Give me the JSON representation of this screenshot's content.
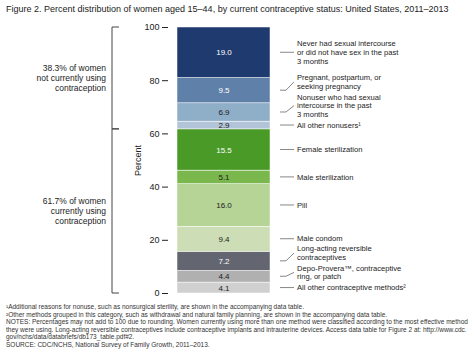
{
  "chart_data": {
    "type": "bar",
    "stacked": true,
    "data_labels": true,
    "title": "Figure 2. Percent distribution of women aged 15–44, by current contraceptive status: United States, 2011–2013",
    "y_label": "Percent",
    "categories": [
      null
    ],
    "ylim": [
      0,
      100
    ],
    "yticks": [
      0,
      20,
      40,
      60,
      80,
      100
    ],
    "series": [
      {
        "name": "All other contraceptive methods²",
        "color": "#d0d0d0",
        "values": [
          4.1
        ],
        "value_labels": [
          "4.1"
        ]
      },
      {
        "name": "Depo-Provera™, contraceptive\nring, or patch",
        "color": "#b0b0b0",
        "values": [
          4.4
        ],
        "value_labels": [
          "4.4"
        ]
      },
      {
        "name": "Long-acting reversible\ncontraceptives",
        "color": "#636570",
        "values": [
          7.2
        ],
        "value_labels": [
          "7.2"
        ]
      },
      {
        "name": "Male condom",
        "color": "#cdddb5",
        "values": [
          9.4
        ],
        "value_labels": [
          "9.4"
        ]
      },
      {
        "name": "Pill",
        "color": "#b5d495",
        "values": [
          16.0
        ],
        "value_labels": [
          "16.0"
        ]
      },
      {
        "name": "Male sterilization",
        "color": "#7ab84e",
        "values": [
          5.1
        ],
        "value_labels": [
          "5.1"
        ]
      },
      {
        "name": "Female sterilization",
        "color": "#4a9a28",
        "values": [
          15.5
        ],
        "value_labels": [
          "15.5"
        ]
      },
      {
        "name": "All other nonusers¹",
        "color": "#b2c5d8",
        "values": [
          2.9
        ],
        "value_labels": [
          "2.9"
        ]
      },
      {
        "name": "Nonuser who had sexual\nintercourse in the past\n3 months",
        "color": "#8faec8",
        "values": [
          6.9
        ],
        "value_labels": [
          "6.9"
        ]
      },
      {
        "name": "Pregnant, postpartum, or\nseeking pregnancy",
        "color": "#5f80a8",
        "values": [
          9.5
        ],
        "value_labels": [
          "9.5"
        ]
      },
      {
        "name": "Never had sexual intercourse\nor did not have sex in the past\n3 months",
        "color": "#1e3a6e",
        "values": [
          19.0
        ],
        "value_labels": [
          "19.0"
        ]
      }
    ],
    "brackets": [
      {
        "label": "38.3% of women\nnot currently using\ncontraception",
        "bottom": 61.7,
        "top": 100.0
      },
      {
        "label": "61.7% of women\ncurrently using\ncontraception",
        "bottom": 0.0,
        "top": 61.7
      }
    ],
    "footnotes": [
      "¹Additional reasons for nonuse, such as nonsurgical sterility, are shown in the accompanying data table.",
      "²Other methods grouped in this category, such as withdrawal and natural family planning, are shown in the accompanying data table.",
      "NOTES: Percentages may not add to 100 due to rounding. Women currently using more than one method were classified according to the most effective method",
      "they were using. Long-acting reversible contraceptives include contraceptive implants and intrauterine devices. Access data table for Figure 2 at: http://www.cdc.",
      "gov/nchs/data/databriefs/db173_table.pdf#2.",
      "SOURCE: CDC/NCHS, National Survey of Family Growth, 2011–2013."
    ]
  }
}
